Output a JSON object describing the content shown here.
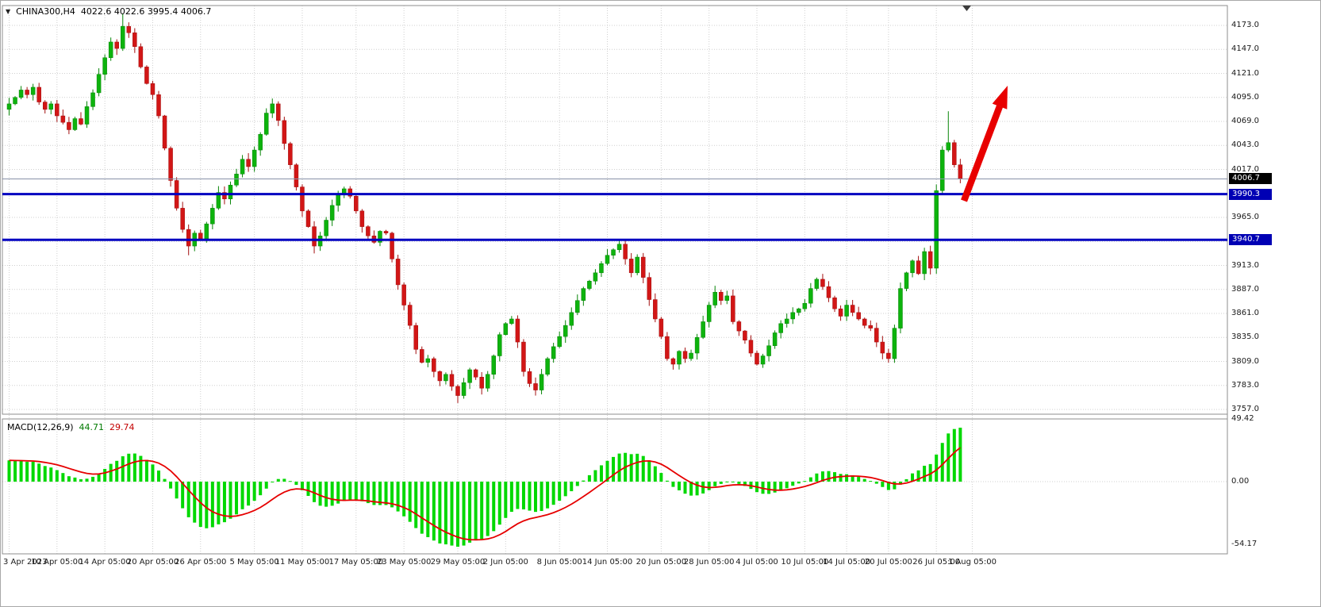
{
  "header": {
    "dropdown_icon": "▼",
    "symbol_period": "CHINA300,H4",
    "ohlc": "4022.6 4022.6 3995.4 4006.7"
  },
  "macd_panel": {
    "name": "MACD(12,26,9)",
    "main_value": "44.71",
    "signal_value": "29.74"
  },
  "chart_data": {
    "type": "candlestick",
    "symbol": "CHINA300",
    "timeframe": "H4",
    "ohlc_readout": {
      "open": 4022.6,
      "high": 4022.6,
      "low": 3995.4,
      "close": 4006.7
    },
    "current_price": {
      "value": 4006.7,
      "label": "4006.7"
    },
    "horizontal_levels": [
      {
        "value": 3990.3,
        "label": "3990.3"
      },
      {
        "value": 3940.7,
        "label": "3940.7"
      }
    ],
    "price_axis": {
      "tick_values": [
        4173,
        4147,
        4121,
        4095,
        4069,
        4043,
        4017,
        3991,
        3965,
        3939,
        3913,
        3887,
        3861,
        3835,
        3809,
        3783,
        3757
      ],
      "tick_labels": [
        "4173.0",
        "4147.0",
        "4121.0",
        "4095.0",
        "4069.0",
        "4043.0",
        "4017.0",
        "3991.0",
        "3965.0",
        "3939.0",
        "3913.0",
        "3887.0",
        "3861.0",
        "3835.0",
        "3809.0",
        "3783.0",
        "3757.0"
      ]
    },
    "time_axis": {
      "labels": [
        "3 Apr 2023",
        "10 Apr 05:00",
        "14 Apr 05:00",
        "20 Apr 05:00",
        "26 Apr 05:00",
        "5 May 05:00",
        "11 May 05:00",
        "17 May 05:00",
        "23 May 05:00",
        "29 May 05:00",
        "2 Jun 05:00",
        "8 Jun 05:00",
        "14 Jun 05:00",
        "20 Jun 05:00",
        "28 Jun 05:00",
        "4 Jul 05:00",
        "10 Jul 05:00",
        "14 Jul 05:00",
        "20 Jul 05:00",
        "26 Jul 05:00",
        "1 Aug 05:00"
      ],
      "candle_indices": [
        0,
        8,
        16,
        24,
        32,
        41,
        49,
        58,
        66,
        75,
        83,
        92,
        100,
        109,
        117,
        125,
        133,
        140,
        147,
        155,
        161
      ]
    },
    "candles": {
      "closes": [
        4088,
        4095,
        4103,
        4098,
        4106,
        4090,
        4082,
        4088,
        4075,
        4068,
        4060,
        4072,
        4066,
        4085,
        4100,
        4120,
        4138,
        4155,
        4148,
        4172,
        4165,
        4150,
        4128,
        4110,
        4098,
        4075,
        4040,
        4005,
        3975,
        3952,
        3934,
        3948,
        3942,
        3958,
        3975,
        3992,
        3985,
        4000,
        4012,
        4028,
        4020,
        4038,
        4055,
        4078,
        4088,
        4070,
        4045,
        4022,
        3998,
        3972,
        3955,
        3934,
        3945,
        3962,
        3978,
        3990,
        3996,
        3988,
        3972,
        3955,
        3945,
        3938,
        3950,
        3948,
        3920,
        3892,
        3870,
        3848,
        3822,
        3808,
        3812,
        3798,
        3788,
        3795,
        3782,
        3772,
        3786,
        3800,
        3792,
        3780,
        3795,
        3815,
        3838,
        3850,
        3855,
        3830,
        3798,
        3785,
        3778,
        3795,
        3812,
        3825,
        3836,
        3848,
        3862,
        3875,
        3888,
        3896,
        3905,
        3915,
        3924,
        3930,
        3936,
        3920,
        3905,
        3922,
        3900,
        3876,
        3855,
        3836,
        3812,
        3806,
        3820,
        3812,
        3818,
        3835,
        3852,
        3870,
        3884,
        3875,
        3880,
        3852,
        3842,
        3832,
        3818,
        3806,
        3815,
        3826,
        3840,
        3850,
        3855,
        3862,
        3866,
        3872,
        3888,
        3898,
        3890,
        3878,
        3866,
        3858,
        3870,
        3862,
        3855,
        3848,
        3845,
        3830,
        3818,
        3812,
        3845,
        3888,
        3905,
        3918,
        3904,
        3928,
        3910,
        3994,
        4038,
        4046,
        4022,
        4006.7
      ],
      "wick_high_overrides": {
        "19": 4186,
        "102": 3941,
        "157": 4080
      },
      "wick_low_overrides": {
        "30": 3924,
        "51": 3926,
        "75": 3764,
        "88": 3772
      }
    },
    "macd": {
      "fast": 12,
      "slow": 26,
      "signal": 9,
      "axis_labels": [
        "49.42",
        "0.00",
        "-54.17"
      ],
      "axis_values": [
        49.42,
        0.0,
        -54.17
      ],
      "main_display": 44.71,
      "signal_display": 29.74
    },
    "annotation": {
      "type": "arrow",
      "direction": "up-right",
      "color": "#e80000"
    }
  },
  "colors": {
    "bull": "#0db30d",
    "bull_stroke": "#078507",
    "bear": "#d21616",
    "bear_stroke": "#a30f0f",
    "macd_hist": "#00d800",
    "macd_signal": "#e60000",
    "level_line": "#0000c0",
    "current_price_line": "#8892a8",
    "grid": "#cfcfcf",
    "pane_border": "#8e8e8e",
    "badge_current_bg": "#000000",
    "badge_level_bg": "#0000b4",
    "arrow": "#e80000"
  }
}
